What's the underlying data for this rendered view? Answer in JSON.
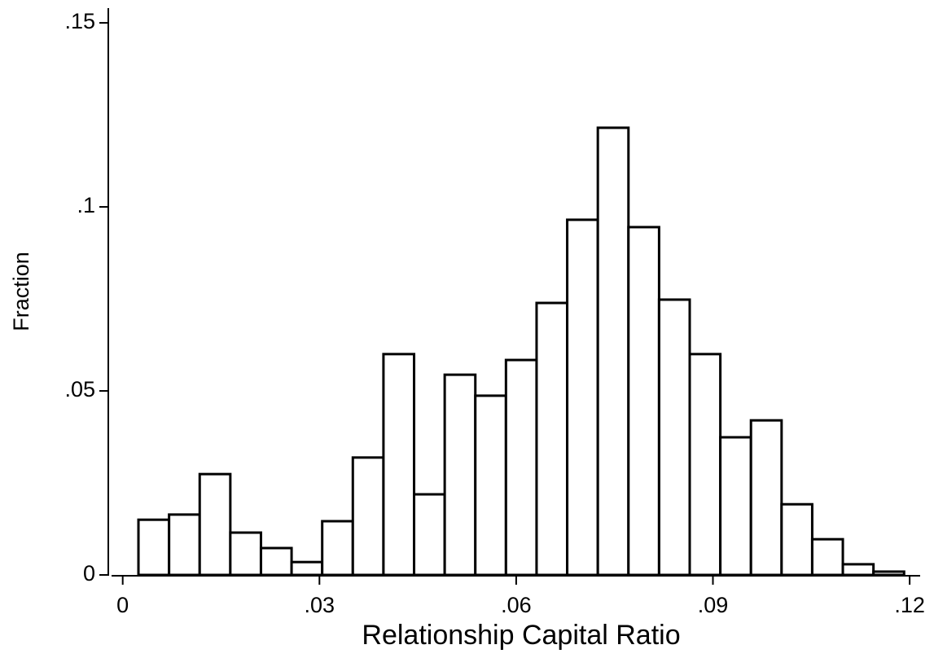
{
  "chart_data": {
    "type": "histogram",
    "x_label": "Relationship Capital Ratio",
    "y_label": "Fraction",
    "bins": [
      0.0024,
      0.00707,
      0.01174,
      0.01641,
      0.02108,
      0.02575,
      0.03042,
      0.03509,
      0.03976,
      0.04443,
      0.0491,
      0.05377,
      0.05844,
      0.06311,
      0.06778,
      0.07245,
      0.07712,
      0.08179,
      0.08646,
      0.09113,
      0.0958,
      0.10047,
      0.10514,
      0.10981,
      0.11448,
      0.11915
    ],
    "values": [
      0.015,
      0.0164,
      0.0274,
      0.0115,
      0.0073,
      0.0035,
      0.0146,
      0.0319,
      0.06,
      0.0219,
      0.0544,
      0.0487,
      0.0584,
      0.0739,
      0.0965,
      0.1215,
      0.0945,
      0.0748,
      0.06,
      0.0374,
      0.042,
      0.0192,
      0.0097,
      0.0029,
      0.0009
    ],
    "color": "#ffffff",
    "edge_color": "#000000",
    "xlim": [
      -0.0017,
      0.1216
    ],
    "ylim": [
      0,
      0.154
    ],
    "xticks": [
      0,
      {
        "value": 0.03,
        "label": ".03"
      },
      {
        "value": 0.06,
        "label": ".06"
      },
      {
        "value": 0.09,
        "label": ".09"
      },
      {
        "value": 0.12,
        "label": ".12"
      }
    ],
    "yticks": [
      0,
      {
        "value": 0.05,
        "label": ".05"
      },
      {
        "value": 0.1,
        "label": ".1"
      },
      {
        "value": 0.15,
        "label": ".15"
      }
    ],
    "grid": false
  }
}
